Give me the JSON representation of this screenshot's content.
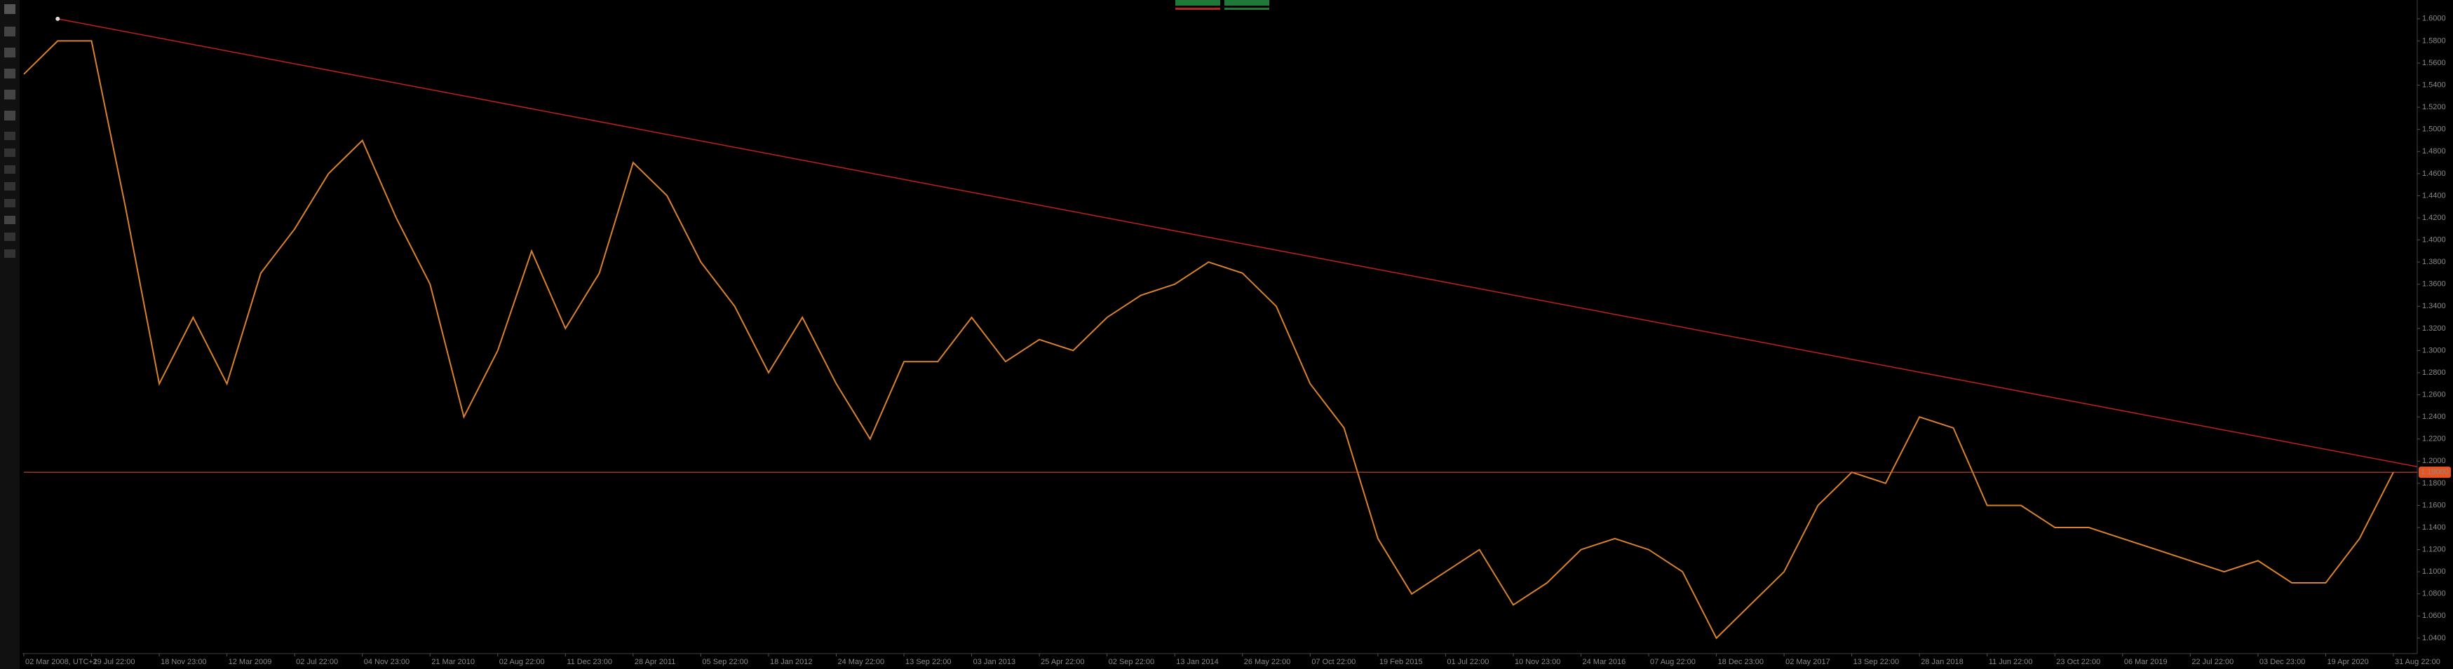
{
  "chart_data": {
    "type": "line",
    "categories": [
      "02 Mar 2008, UTC+1",
      null,
      "29 Jul 22:00",
      null,
      "18 Nov 23:00",
      null,
      "12 Mar 2009",
      null,
      "02 Jul 22:00",
      null,
      "04 Nov 23:00",
      null,
      "21 Mar 2010",
      null,
      "02 Aug 22:00",
      null,
      "11 Dec 23:00",
      null,
      "28 Apr 2011",
      null,
      "05 Sep 22:00",
      null,
      "18 Jan 2012",
      null,
      "24 May 22:00",
      null,
      "13 Sep 22:00",
      null,
      "03 Jan 2013",
      null,
      "25 Apr 22:00",
      null,
      "02 Sep 22:00",
      null,
      "13 Jan 2014",
      null,
      "26 May 22:00",
      null,
      "07 Oct 22:00",
      null,
      "19 Feb 2015",
      null,
      "01 Jul 22:00",
      null,
      "10 Nov 23:00",
      null,
      "24 Mar 2016",
      null,
      "07 Aug 22:00",
      null,
      "18 Dec 23:00",
      null,
      "02 May 2017",
      null,
      "13 Sep 22:00",
      null,
      "28 Jan 2018",
      null,
      "11 Jun 22:00",
      null,
      "23 Oct 22:00",
      null,
      "06 Mar 2019",
      null,
      "22 Jul 22:00",
      null,
      "03 Dec 23:00",
      null,
      "19 Apr 2020",
      null,
      "31 Aug 22:00"
    ],
    "values": [
      1.55,
      1.58,
      1.58,
      1.43,
      1.27,
      1.33,
      1.27,
      1.37,
      1.41,
      1.46,
      1.49,
      1.42,
      1.36,
      1.24,
      1.3,
      1.39,
      1.32,
      1.37,
      1.47,
      1.44,
      1.38,
      1.34,
      1.28,
      1.33,
      1.27,
      1.22,
      1.29,
      1.29,
      1.33,
      1.29,
      1.31,
      1.3,
      1.33,
      1.35,
      1.36,
      1.38,
      1.37,
      1.34,
      1.27,
      1.23,
      1.13,
      1.08,
      1.1,
      1.12,
      1.07,
      1.09,
      1.12,
      1.13,
      1.12,
      1.1,
      1.04,
      1.07,
      1.1,
      1.16,
      1.19,
      1.18,
      1.24,
      1.23,
      1.16,
      1.16,
      1.14,
      1.14,
      1.13,
      1.12,
      1.11,
      1.1,
      1.11,
      1.09,
      1.09,
      1.13,
      1.19
    ],
    "color": "#d9822b",
    "ylim": [
      1.026,
      1.617
    ],
    "yticks": [
      {
        "value": 1.6,
        "label": "1.6000"
      },
      {
        "value": 1.58,
        "label": "1.5800"
      },
      {
        "value": 1.56,
        "label": "1.5600"
      },
      {
        "value": 1.54,
        "label": "1.5400"
      },
      {
        "value": 1.52,
        "label": "1.5200"
      },
      {
        "value": 1.5,
        "label": "1.5000"
      },
      {
        "value": 1.48,
        "label": "1.4800"
      },
      {
        "value": 1.46,
        "label": "1.4600"
      },
      {
        "value": 1.44,
        "label": "1.4400"
      },
      {
        "value": 1.42,
        "label": "1.4200"
      },
      {
        "value": 1.4,
        "label": "1.4000"
      },
      {
        "value": 1.38,
        "label": "1.3800"
      },
      {
        "value": 1.36,
        "label": "1.3600"
      },
      {
        "value": 1.34,
        "label": "1.3400"
      },
      {
        "value": 1.32,
        "label": "1.3200"
      },
      {
        "value": 1.3,
        "label": "1.3000"
      },
      {
        "value": 1.28,
        "label": "1.2800"
      },
      {
        "value": 1.26,
        "label": "1.2600"
      },
      {
        "value": 1.24,
        "label": "1.2400"
      },
      {
        "value": 1.22,
        "label": "1.2200"
      },
      {
        "value": 1.2,
        "label": "1.2000"
      },
      {
        "value": 1.18,
        "label": "1.1800"
      },
      {
        "value": 1.16,
        "label": "1.1600"
      },
      {
        "value": 1.14,
        "label": "1.1400"
      },
      {
        "value": 1.12,
        "label": "1.1200"
      },
      {
        "value": 1.1,
        "label": "1.1000"
      },
      {
        "value": 1.08,
        "label": "1.0800"
      },
      {
        "value": 1.06,
        "label": "1.0600"
      },
      {
        "value": 1.04,
        "label": "1.0400"
      }
    ],
    "price_line": {
      "value": 1.19,
      "label": "1.19000",
      "color": "#e8541f"
    },
    "trend_line": {
      "from": 1.6,
      "to": 1.195,
      "color": "#c0201a"
    }
  }
}
